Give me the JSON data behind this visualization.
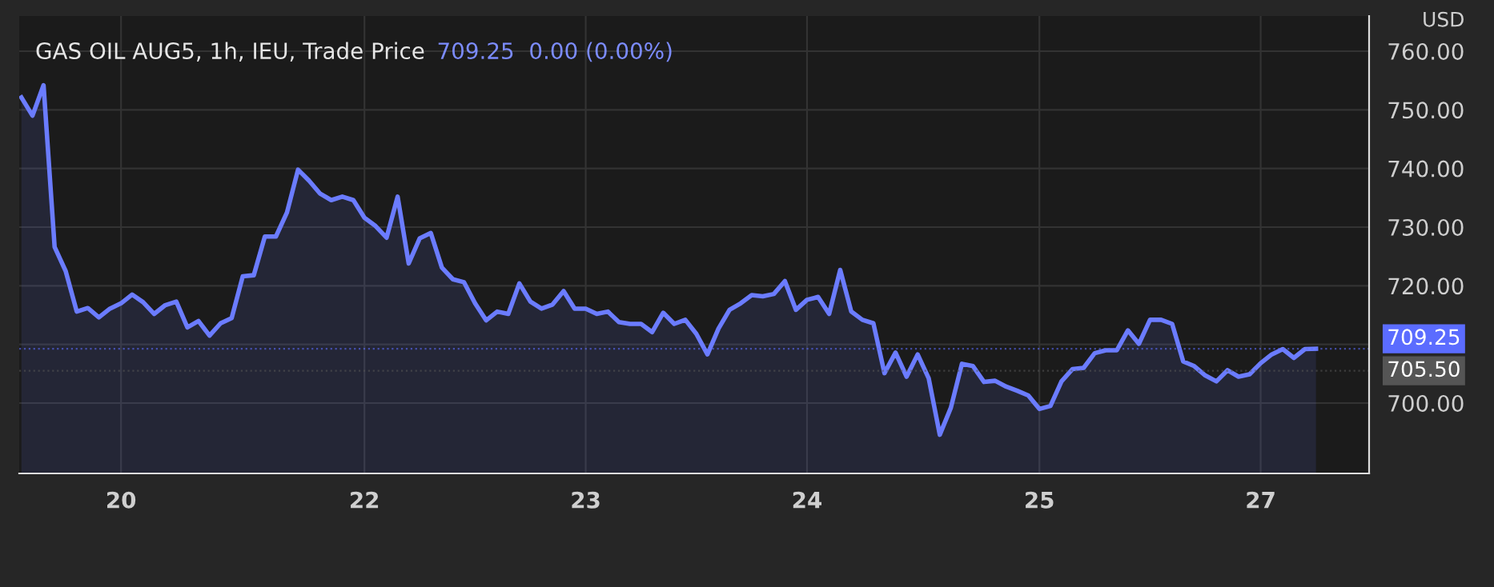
{
  "chart_data": {
    "type": "area",
    "title": "GAS OIL AUG5, 1h, IEU, Trade Price",
    "subtitle": "709.25  0.00 (0.00%)",
    "ylabel": "USD",
    "categories": [
      null,
      null,
      null,
      null,
      null,
      null,
      null,
      null,
      null,
      "20",
      null,
      null,
      null,
      null,
      null,
      null,
      null,
      null,
      null,
      null,
      null,
      null,
      null,
      null,
      null,
      null,
      null,
      null,
      null,
      null,
      null,
      "22",
      null,
      null,
      null,
      null,
      null,
      null,
      null,
      null,
      null,
      null,
      null,
      null,
      null,
      null,
      null,
      null,
      null,
      null,
      null,
      "23",
      null,
      null,
      null,
      null,
      null,
      null,
      null,
      null,
      null,
      null,
      null,
      null,
      null,
      null,
      null,
      null,
      null,
      null,
      null,
      "24",
      null,
      null,
      null,
      null,
      null,
      null,
      null,
      null,
      null,
      null,
      null,
      null,
      null,
      null,
      null,
      null,
      null,
      null,
      null,
      null,
      "25",
      null,
      null,
      null,
      null,
      null,
      null,
      null,
      null,
      null,
      null,
      null,
      null,
      null,
      null,
      null,
      null,
      null,
      null,
      null,
      "27",
      null,
      null,
      null,
      null,
      null
    ],
    "series": [
      {
        "color": "#6b7cff",
        "values": [
          752.1,
          749.0,
          754.2,
          726.6,
          722.5,
          715.6,
          716.2,
          714.6,
          716.1,
          717.0,
          718.5,
          717.2,
          715.2,
          716.7,
          717.3,
          712.9,
          714.0,
          711.5,
          713.6,
          714.5,
          721.6,
          721.8,
          728.4,
          728.4,
          732.5,
          739.8,
          737.9,
          735.7,
          734.6,
          735.2,
          734.6,
          731.6,
          730.2,
          728.2,
          735.2,
          723.8,
          728.1,
          729.0,
          723.1,
          721.1,
          720.6,
          717.0,
          714.1,
          715.6,
          715.2,
          720.4,
          717.3,
          716.1,
          716.8,
          719.1,
          716.1,
          716.1,
          715.2,
          715.6,
          713.8,
          713.5,
          713.5,
          712.1,
          715.4,
          713.5,
          714.2,
          711.8,
          708.3,
          712.7,
          715.9,
          717.0,
          718.4,
          718.2,
          718.6,
          720.8,
          715.9,
          717.6,
          718.1,
          715.2,
          722.7,
          715.6,
          714.2,
          713.6,
          705.1,
          708.6,
          704.5,
          708.3,
          704.2,
          694.6,
          699.2,
          706.7,
          706.3,
          703.6,
          703.8,
          702.8,
          702.1,
          701.3,
          699.0,
          699.5,
          703.7,
          705.8,
          706.0,
          708.5,
          709.0,
          709.0,
          712.4,
          710.1,
          714.2,
          714.2,
          713.5,
          707.1,
          706.3,
          704.7,
          703.7,
          705.6,
          704.5,
          704.9,
          706.8,
          708.3,
          709.2,
          707.7,
          709.2,
          709.25
        ]
      }
    ],
    "ylim": [
      688,
      766
    ],
    "yticks": [
      {
        "value": 700,
        "label": "700.00"
      },
      {
        "value": 710,
        "label": null
      },
      {
        "value": 720,
        "label": "720.00"
      },
      {
        "value": 730,
        "label": "730.00"
      },
      {
        "value": 740,
        "label": "740.00"
      },
      {
        "value": 750,
        "label": "750.00"
      },
      {
        "value": 760,
        "label": "760.00"
      }
    ],
    "ref_lines": [
      {
        "axis": "y",
        "value": 709.25,
        "label": "709.25",
        "color": "#5b6cff",
        "line_style": "dotted"
      },
      {
        "axis": "y",
        "value": 705.5,
        "label": "705.50",
        "color": "#555555",
        "line_style": "dotted"
      }
    ],
    "grid": true,
    "marker": "none",
    "line_style": "solid"
  }
}
